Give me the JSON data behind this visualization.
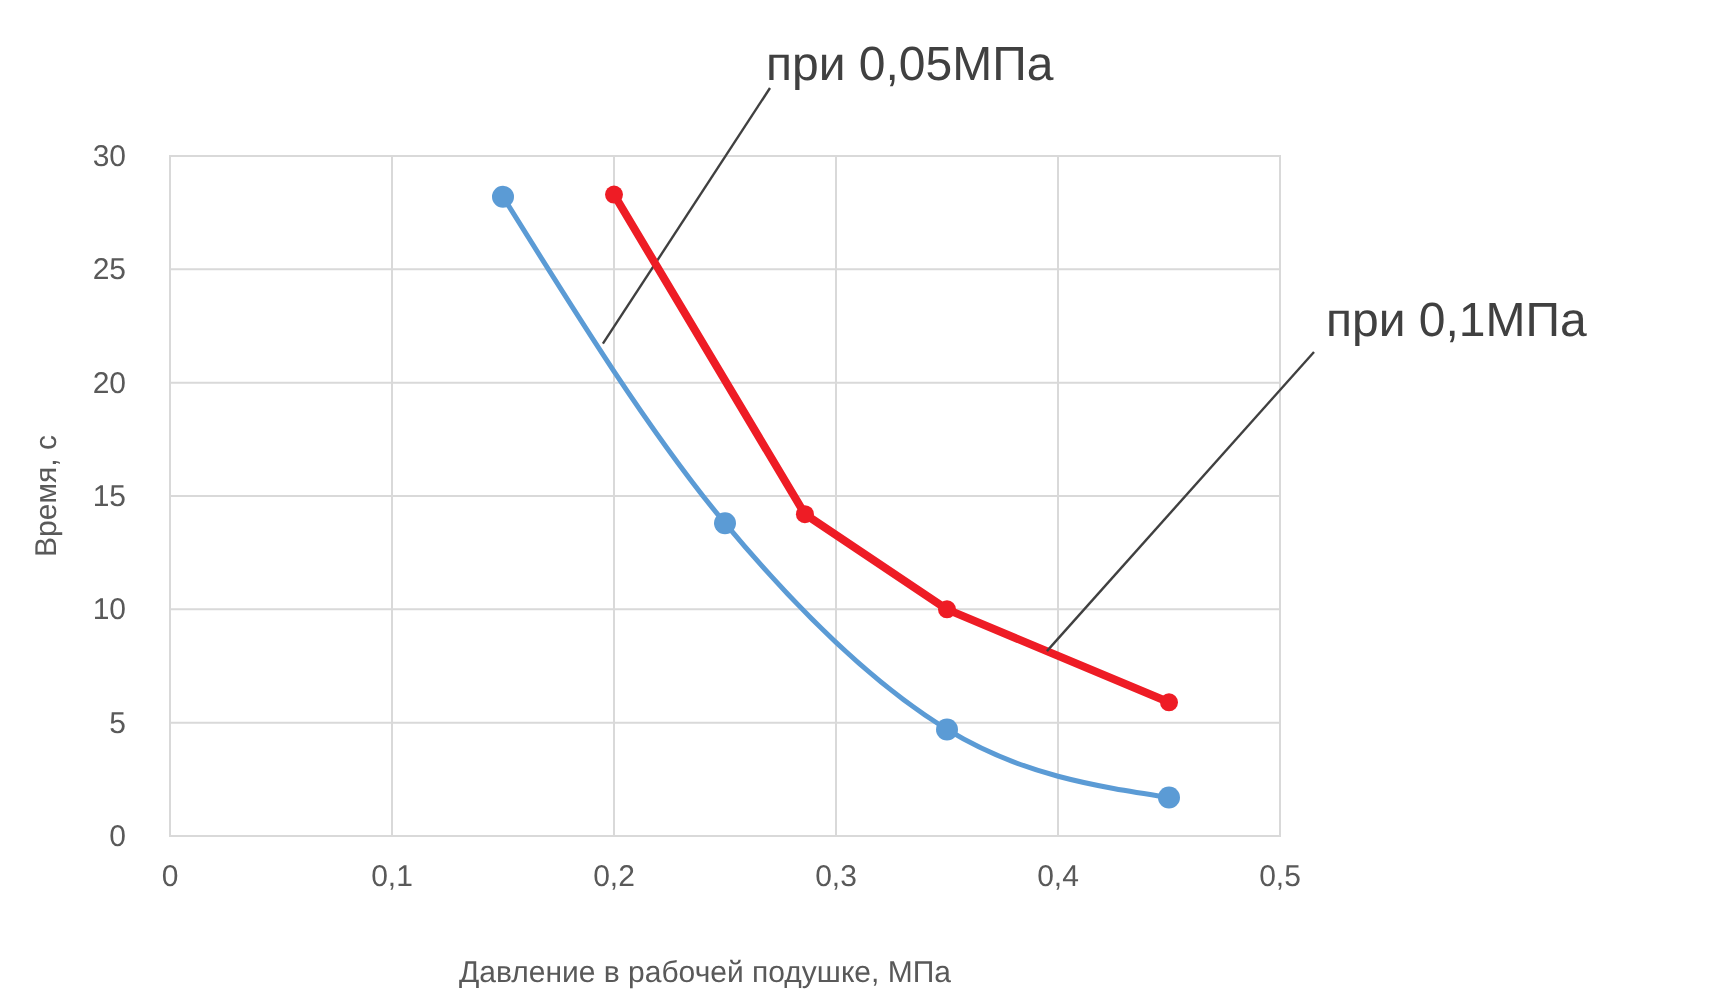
{
  "chart_data": {
    "type": "line",
    "xlabel": "Давление в рабочей подушке, МПа",
    "ylabel": "Время, с",
    "xlim": [
      0,
      0.5
    ],
    "xticks": [
      0,
      {
        "value": 0.1,
        "label": "0,1"
      },
      {
        "value": 0.2,
        "label": "0,2"
      },
      {
        "value": 0.3,
        "label": "0,3"
      },
      {
        "value": 0.4,
        "label": "0,4"
      },
      {
        "value": 0.5,
        "label": "0,5"
      }
    ],
    "ylim": [
      0,
      30
    ],
    "yticks": [
      0,
      5,
      10,
      15,
      20,
      25,
      30
    ],
    "grid": true,
    "marker": "circle",
    "line_style": "solid",
    "series": [
      {
        "name": "при 0,05МПа",
        "color": "#5b9bd5",
        "x": [
          0.15,
          0.25,
          0.35,
          0.45
        ],
        "values": [
          28.2,
          13.8,
          4.7,
          1.7
        ]
      },
      {
        "name": "при 0,1МПа",
        "color": "#ee1c25",
        "x": [
          0.2,
          0.286,
          0.35,
          0.45
        ],
        "values": [
          28.3,
          14.2,
          10,
          5.9
        ]
      }
    ]
  }
}
